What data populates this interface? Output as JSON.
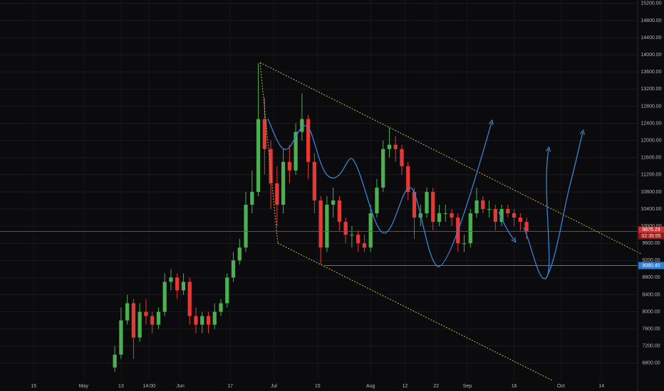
{
  "chart_data": {
    "type": "candlestick",
    "ylim": [
      6400,
      15280
    ],
    "yticks": [
      {
        "value": 6800,
        "label": "6800.00"
      },
      {
        "value": 7200,
        "label": "7200.00"
      },
      {
        "value": 7600,
        "label": "7600.00"
      },
      {
        "value": 8000,
        "label": "8000.00"
      },
      {
        "value": 8400,
        "label": "8400.00"
      },
      {
        "value": 8800,
        "label": "8800.00"
      },
      {
        "value": 9200,
        "label": "9200.00"
      },
      {
        "value": 9600,
        "label": "9600.00"
      },
      {
        "value": 10000,
        "label": "10000.00"
      },
      {
        "value": 10400,
        "label": "10400.00"
      },
      {
        "value": 10800,
        "label": "10800.00"
      },
      {
        "value": 11200,
        "label": "11200.00"
      },
      {
        "value": 11600,
        "label": "11600.00"
      },
      {
        "value": 12000,
        "label": "12000.00"
      },
      {
        "value": 12400,
        "label": "12400.00"
      },
      {
        "value": 12800,
        "label": "12800.00"
      },
      {
        "value": 13200,
        "label": "13200.00"
      },
      {
        "value": 13600,
        "label": "13600.00"
      },
      {
        "value": 14000,
        "label": "14000.00"
      },
      {
        "value": 14400,
        "label": "14400.00"
      },
      {
        "value": 14800,
        "label": "14800.00"
      },
      {
        "value": 15200,
        "label": "15200.00"
      }
    ],
    "xlim": [
      94.2,
      298.6
    ],
    "xticks": [
      {
        "value": 105,
        "label": "15"
      },
      {
        "value": 121,
        "label": "May"
      },
      {
        "value": 133,
        "label": "13"
      },
      {
        "value": 142,
        "label": "14:00"
      },
      {
        "value": 152,
        "label": "Jun"
      },
      {
        "value": 168,
        "label": "17"
      },
      {
        "value": 182,
        "label": "Jul"
      },
      {
        "value": 196,
        "label": "15"
      },
      {
        "value": 213,
        "label": "Aug"
      },
      {
        "value": 224,
        "label": "12"
      },
      {
        "value": 234,
        "label": "22"
      },
      {
        "value": 244,
        "label": "Sep"
      },
      {
        "value": 259,
        "label": "16"
      },
      {
        "value": 274,
        "label": "Oct"
      },
      {
        "value": 287,
        "label": "14"
      }
    ],
    "grid": true,
    "up_color": "#4caf50",
    "down_color": "#e53935",
    "x": [
      131,
      133,
      135,
      137,
      139,
      141,
      143,
      145,
      147,
      149,
      151,
      153,
      155,
      157,
      159,
      161,
      163,
      165,
      167,
      169,
      171,
      173,
      175,
      177,
      179,
      181,
      183,
      185,
      187,
      189,
      191,
      193,
      195,
      197,
      199,
      201,
      203,
      205,
      207,
      209,
      211,
      213,
      215,
      217,
      219,
      221,
      223,
      225,
      227,
      229,
      231,
      233,
      235,
      237,
      239,
      241,
      243,
      245,
      247,
      249,
      251,
      253,
      255,
      257,
      259,
      261,
      263
    ],
    "open": [
      6700,
      7000,
      7800,
      8200,
      7400,
      8000,
      7900,
      7700,
      8000,
      8700,
      8800,
      8500,
      8700,
      7900,
      7700,
      7900,
      7700,
      8000,
      8200,
      8800,
      9200,
      9500,
      10500,
      10800,
      12500,
      11800,
      11000,
      10500,
      11500,
      11300,
      12200,
      12500,
      11500,
      10600,
      9500,
      10500,
      10600,
      10100,
      9800,
      9800,
      9600,
      9500,
      10300,
      10900,
      11800,
      11900,
      11800,
      11400,
      10800,
      10200,
      10300,
      10800,
      10100,
      10300,
      10300,
      10200,
      9600,
      9600,
      10300,
      10600,
      10400,
      10400,
      10100,
      10400,
      10300,
      10200,
      10100
    ],
    "high": [
      7200,
      8100,
      8400,
      8300,
      8200,
      8300,
      8000,
      8100,
      8900,
      9000,
      8900,
      8900,
      8800,
      8100,
      8000,
      8000,
      8200,
      8300,
      8900,
      9400,
      9700,
      10800,
      11300,
      13800,
      13000,
      12000,
      11400,
      11800,
      11900,
      12400,
      13100,
      12600,
      11700,
      10700,
      10700,
      10900,
      10700,
      10200,
      10000,
      9900,
      9800,
      10500,
      11100,
      12000,
      12300,
      12100,
      11900,
      11500,
      10900,
      10500,
      10900,
      10900,
      10500,
      10500,
      10400,
      10300,
      9800,
      10400,
      10900,
      10700,
      10600,
      10500,
      10500,
      10500,
      10400,
      10300,
      10200
    ],
    "low": [
      6600,
      6900,
      7700,
      6900,
      7300,
      7700,
      7500,
      7600,
      7900,
      8500,
      8300,
      8400,
      7700,
      7500,
      7500,
      7500,
      7600,
      7900,
      8100,
      8700,
      9100,
      9400,
      10300,
      10700,
      11200,
      10400,
      10000,
      10300,
      11000,
      11200,
      12000,
      11100,
      10300,
      9100,
      9400,
      10200,
      9900,
      9600,
      9500,
      9400,
      9400,
      9400,
      10200,
      10800,
      11600,
      11500,
      11200,
      10600,
      9700,
      10000,
      10200,
      9900,
      10000,
      10100,
      10000,
      9400,
      9400,
      9500,
      10200,
      10300,
      10200,
      9900,
      10000,
      10200,
      10000,
      9900,
      9700
    ],
    "close": [
      7000,
      7800,
      8200,
      7400,
      8000,
      7900,
      7700,
      8000,
      8700,
      8800,
      8500,
      8700,
      7900,
      7700,
      7900,
      7700,
      8000,
      8200,
      8800,
      9200,
      9500,
      10500,
      10800,
      12500,
      11800,
      11000,
      10500,
      11500,
      11300,
      12200,
      12500,
      11500,
      10600,
      9500,
      10500,
      10600,
      10100,
      9800,
      9800,
      9600,
      9500,
      10300,
      10900,
      11800,
      11900,
      11800,
      11400,
      10800,
      10200,
      10300,
      10800,
      10100,
      10300,
      10300,
      10200,
      9600,
      9600,
      10300,
      10600,
      10400,
      10400,
      10100,
      10400,
      10300,
      10200,
      10100,
      9876
    ],
    "last_price": 9876.29,
    "last_price_color": "#d32f2f",
    "countdown": "02:35:55",
    "level": {
      "value": 9080.4,
      "label": "9080.40"
    },
    "level_color": "#2f7fd6"
  }
}
